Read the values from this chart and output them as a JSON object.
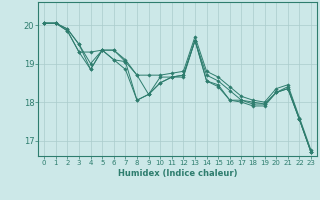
{
  "xlabel": "Humidex (Indice chaleur)",
  "xlim": [
    -0.5,
    23.5
  ],
  "ylim": [
    16.6,
    20.6
  ],
  "yticks": [
    17,
    18,
    19,
    20
  ],
  "xticks": [
    0,
    1,
    2,
    3,
    4,
    5,
    6,
    7,
    8,
    9,
    10,
    11,
    12,
    13,
    14,
    15,
    16,
    17,
    18,
    19,
    20,
    21,
    22,
    23
  ],
  "background_color": "#cce8e8",
  "grid_color": "#aacccc",
  "line_color": "#2e7d6e",
  "series": [
    [
      20.05,
      20.05,
      19.85,
      19.3,
      18.85,
      19.35,
      19.1,
      18.85,
      18.05,
      18.2,
      18.5,
      18.65,
      18.65,
      19.6,
      18.55,
      18.45,
      18.05,
      18.05,
      17.95,
      17.95,
      18.25,
      18.35,
      17.55,
      16.7
    ],
    [
      20.05,
      20.05,
      19.85,
      19.3,
      19.3,
      19.35,
      19.1,
      19.05,
      18.05,
      18.2,
      18.5,
      18.65,
      18.7,
      19.6,
      18.55,
      18.4,
      18.05,
      18.0,
      17.9,
      17.9,
      18.25,
      18.35,
      17.55,
      16.7
    ],
    [
      20.05,
      20.05,
      19.9,
      19.5,
      18.85,
      19.35,
      19.35,
      19.05,
      18.7,
      18.2,
      18.65,
      18.65,
      18.7,
      19.6,
      18.7,
      18.55,
      18.3,
      18.05,
      18.0,
      17.95,
      18.25,
      18.4,
      17.55,
      16.7
    ],
    [
      20.05,
      20.05,
      19.9,
      19.5,
      19.0,
      19.35,
      19.35,
      19.1,
      18.7,
      18.7,
      18.7,
      18.75,
      18.8,
      19.7,
      18.8,
      18.65,
      18.4,
      18.15,
      18.05,
      18.0,
      18.35,
      18.45,
      17.6,
      16.75
    ]
  ]
}
